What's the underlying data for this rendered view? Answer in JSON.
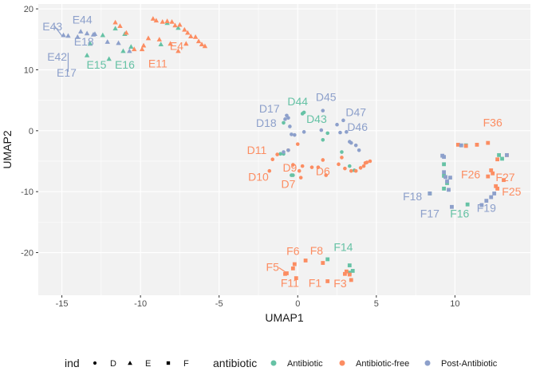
{
  "chart_data": {
    "type": "scatter",
    "xlabel": "UMAP1",
    "ylabel": "UMAP2",
    "xlim": [
      -16.5,
      14.8
    ],
    "ylim": [
      -27,
      20.8
    ],
    "xticks": [
      -15,
      -10,
      -5,
      0,
      5,
      10
    ],
    "yticks": [
      -20,
      -10,
      0,
      10,
      20
    ],
    "tick_labels_x": [
      "-15",
      "-10",
      "-5",
      "0",
      "5",
      "10"
    ],
    "tick_labels_y": [
      "-20",
      "-10",
      "0",
      "10",
      "20"
    ],
    "grid": true,
    "colors": {
      "Antibiotic": "#66c2a5",
      "Antibiotic-free": "#fc8d62",
      "Post-Antibiotic": "#8da0cb",
      "panel": "#f2f2f2",
      "grid": "#ffffff"
    },
    "legend": {
      "position": "bottom",
      "shape_title": "ind",
      "shapes": [
        {
          "label": "D",
          "shape": "circle"
        },
        {
          "label": "E",
          "shape": "triangle"
        },
        {
          "label": "F",
          "shape": "square"
        }
      ],
      "color_title": "antibiotic",
      "colors": [
        {
          "label": "Antibiotic",
          "color": "#66c2a5"
        },
        {
          "label": "Antibiotic-free",
          "color": "#fc8d62"
        },
        {
          "label": "Post-Antibiotic",
          "color": "#8da0cb"
        }
      ]
    },
    "series": [
      {
        "name": "Antibiotic",
        "shape": "D",
        "points": [
          [
            -0.9,
            1.3
          ],
          [
            0.3,
            2.8
          ],
          [
            0.4,
            3.0
          ],
          [
            1.9,
            -0.4
          ],
          [
            1.6,
            -1.5
          ],
          [
            2.8,
            -3.5
          ],
          [
            3.3,
            -5.8
          ],
          [
            3.6,
            -6.5
          ],
          [
            -1.1,
            -3.8
          ],
          [
            -0.9,
            -3.8
          ],
          [
            -0.4,
            -7.3
          ],
          [
            -0.3,
            -7.3
          ]
        ]
      },
      {
        "name": "Antibiotic-free",
        "shape": "D",
        "points": [
          [
            0.0,
            -2.2
          ],
          [
            -0.6,
            -3.2
          ],
          [
            -1.3,
            -3.9
          ],
          [
            -1.6,
            -4.7
          ],
          [
            -1.8,
            -6.6
          ],
          [
            -0.3,
            -5.6
          ],
          [
            0.3,
            -5.8
          ],
          [
            0.9,
            -6.0
          ],
          [
            1.6,
            -4.8
          ],
          [
            1.3,
            -6.0
          ],
          [
            1.8,
            -7.3
          ],
          [
            0.1,
            -6.6
          ],
          [
            0.2,
            -7.7
          ],
          [
            2.8,
            -4.4
          ],
          [
            2.6,
            -5.5
          ],
          [
            3.0,
            -6.2
          ],
          [
            3.4,
            -6.6
          ],
          [
            3.7,
            -6.6
          ],
          [
            4.0,
            -6.1
          ],
          [
            4.2,
            -5.8
          ],
          [
            4.3,
            -5.3
          ],
          [
            4.4,
            -5.2
          ],
          [
            4.6,
            -5.0
          ]
        ]
      },
      {
        "name": "Post-Antibiotic",
        "shape": "D",
        "points": [
          [
            -0.8,
            1.9
          ],
          [
            -0.6,
            2.1
          ],
          [
            -0.7,
            2.5
          ],
          [
            -0.5,
            0.7
          ],
          [
            -0.4,
            -0.6
          ],
          [
            -0.2,
            -0.7
          ],
          [
            -0.6,
            -3.2
          ],
          [
            -0.9,
            -3.5
          ],
          [
            0.4,
            -0.2
          ],
          [
            1.5,
            0.1
          ],
          [
            1.6,
            3.3
          ],
          [
            2.5,
            1.0
          ],
          [
            2.9,
            1.7
          ],
          [
            3.1,
            -0.2
          ],
          [
            3.3,
            -1.8
          ],
          [
            3.4,
            -2.0
          ],
          [
            3.7,
            -2.4
          ],
          [
            3.9,
            -3.2
          ],
          [
            2.7,
            -0.3
          ]
        ]
      },
      {
        "name": "Antibiotic",
        "shape": "E",
        "points": [
          [
            -13.2,
            14.3
          ],
          [
            -13.4,
            12.4
          ],
          [
            -12.0,
            11.8
          ],
          [
            -11.1,
            13.1
          ],
          [
            -12.4,
            15.7
          ],
          [
            -11.6,
            16.8
          ],
          [
            -11.0,
            15.9
          ],
          [
            -10.6,
            13.8
          ],
          [
            -8.3,
            17.7
          ],
          [
            -7.6,
            16.9
          ],
          [
            -8.7,
            14.2
          ]
        ]
      },
      {
        "name": "Antibiotic-free",
        "shape": "E",
        "points": [
          [
            -11.6,
            17.8
          ],
          [
            -11.3,
            17.2
          ],
          [
            -10.9,
            16.1
          ],
          [
            -10.4,
            13.4
          ],
          [
            -9.9,
            13.4
          ],
          [
            -9.2,
            18.4
          ],
          [
            -9.0,
            18.1
          ],
          [
            -8.6,
            17.9
          ],
          [
            -8.3,
            18.0
          ],
          [
            -8.0,
            17.9
          ],
          [
            -7.8,
            17.3
          ],
          [
            -7.5,
            17.4
          ],
          [
            -7.2,
            16.6
          ],
          [
            -7.0,
            16.1
          ],
          [
            -6.8,
            15.5
          ],
          [
            -6.5,
            15.4
          ],
          [
            -6.3,
            14.7
          ],
          [
            -6.1,
            14.2
          ],
          [
            -5.9,
            13.9
          ],
          [
            -7.1,
            14.3
          ],
          [
            -7.6,
            13.1
          ],
          [
            -8.1,
            14.3
          ],
          [
            -8.8,
            15.0
          ],
          [
            -9.5,
            15.2
          ],
          [
            -9.8,
            14.0
          ]
        ]
      },
      {
        "name": "Post-Antibiotic",
        "shape": "E",
        "points": [
          [
            -14.6,
            15.6
          ],
          [
            -14.9,
            15.7
          ],
          [
            -13.8,
            16.3
          ],
          [
            -13.4,
            16.0
          ],
          [
            -12.9,
            15.9
          ],
          [
            -12.1,
            14.6
          ],
          [
            -11.4,
            14.4
          ],
          [
            -10.7,
            13.1
          ],
          [
            -13.0,
            15.8
          ],
          [
            -14.0,
            15.4
          ]
        ]
      },
      {
        "name": "Antibiotic",
        "shape": "F",
        "points": [
          [
            1.9,
            -21.1
          ],
          [
            3.3,
            -22.1
          ],
          [
            3.3,
            -23.3
          ],
          [
            3.5,
            -23.0
          ],
          [
            13.0,
            -4.6
          ],
          [
            12.8,
            -4.0
          ],
          [
            9.3,
            -5.5
          ],
          [
            9.3,
            -7.4
          ],
          [
            9.5,
            -8.6
          ],
          [
            9.3,
            -9.5
          ],
          [
            8.4,
            -10.3
          ],
          [
            10.8,
            -12.1
          ],
          [
            10.7,
            -2.4
          ]
        ]
      },
      {
        "name": "Antibiotic-free",
        "shape": "F",
        "points": [
          [
            -0.7,
            -23.4
          ],
          [
            -0.8,
            -23.5
          ],
          [
            -0.3,
            -22.6
          ],
          [
            -0.1,
            -24.2
          ],
          [
            0.5,
            -21.3
          ],
          [
            1.6,
            -21.7
          ],
          [
            1.9,
            -24.7
          ],
          [
            3.0,
            -23.5
          ],
          [
            3.1,
            -23.1
          ],
          [
            3.3,
            -23.6
          ],
          [
            3.4,
            -24.5
          ],
          [
            -0.2,
            -21.9
          ],
          [
            10.2,
            -2.3
          ],
          [
            10.7,
            -2.5
          ],
          [
            11.4,
            -2.3
          ],
          [
            12.1,
            -2.0
          ],
          [
            12.7,
            -4.7
          ],
          [
            13.3,
            -4.0
          ],
          [
            12.3,
            -6.5
          ],
          [
            12.4,
            -7.0
          ],
          [
            12.1,
            -7.5
          ],
          [
            12.6,
            -9.1
          ],
          [
            13.1,
            -8.1
          ],
          [
            12.7,
            -9.5
          ]
        ]
      },
      {
        "name": "Post-Antibiotic",
        "shape": "F",
        "points": [
          [
            9.2,
            -4.1
          ],
          [
            9.3,
            -4.3
          ],
          [
            9.3,
            -6.8
          ],
          [
            9.4,
            -7.6
          ],
          [
            9.5,
            -8.3
          ],
          [
            9.6,
            -9.7
          ],
          [
            8.4,
            -10.3
          ],
          [
            9.8,
            -12.5
          ],
          [
            11.7,
            -12.2
          ],
          [
            12.0,
            -11.5
          ],
          [
            12.3,
            -10.9
          ],
          [
            12.5,
            -10.3
          ],
          [
            10.4,
            -2.4
          ],
          [
            13.3,
            -4.0
          ],
          [
            9.7,
            -7.7
          ]
        ]
      }
    ],
    "annotations": [
      {
        "text": "E43",
        "x": -15.6,
        "y": 16.5,
        "color": "#8da0cb",
        "line_to": [
          -15.0,
          15.6
        ]
      },
      {
        "text": "E44",
        "x": -13.7,
        "y": 17.6,
        "color": "#8da0cb"
      },
      {
        "text": "E18",
        "x": -13.6,
        "y": 14.0,
        "color": "#8da0cb"
      },
      {
        "text": "E42",
        "x": -15.3,
        "y": 11.5,
        "color": "#8da0cb"
      },
      {
        "text": "E17",
        "x": -14.7,
        "y": 8.9,
        "color": "#8da0cb",
        "line_to": [
          -14.6,
          12.8
        ]
      },
      {
        "text": "E15",
        "x": -12.8,
        "y": 10.2,
        "color": "#66c2a5"
      },
      {
        "text": "E16",
        "x": -11.0,
        "y": 10.2,
        "color": "#66c2a5"
      },
      {
        "text": "E4",
        "x": -7.7,
        "y": 13.3,
        "color": "#fc8d62"
      },
      {
        "text": "E11",
        "x": -8.9,
        "y": 10.4,
        "color": "#fc8d62"
      },
      {
        "text": "D44",
        "x": 0.0,
        "y": 4.2,
        "color": "#66c2a5"
      },
      {
        "text": "D45",
        "x": 1.8,
        "y": 4.9,
        "color": "#8da0cb"
      },
      {
        "text": "D17",
        "x": -1.8,
        "y": 3.0,
        "color": "#8da0cb"
      },
      {
        "text": "D47",
        "x": 3.7,
        "y": 2.4,
        "color": "#8da0cb"
      },
      {
        "text": "D43",
        "x": 1.2,
        "y": 1.3,
        "color": "#66c2a5"
      },
      {
        "text": "D18",
        "x": -2.0,
        "y": 0.6,
        "color": "#8da0cb"
      },
      {
        "text": "D46",
        "x": 3.8,
        "y": 0.0,
        "color": "#8da0cb"
      },
      {
        "text": "D11",
        "x": -2.6,
        "y": -3.8,
        "color": "#fc8d62"
      },
      {
        "text": "D9",
        "x": -0.5,
        "y": -6.7,
        "color": "#fc8d62"
      },
      {
        "text": "D6",
        "x": 1.6,
        "y": -7.3,
        "color": "#fc8d62"
      },
      {
        "text": "D10",
        "x": -2.5,
        "y": -8.2,
        "color": "#fc8d62"
      },
      {
        "text": "D7",
        "x": -0.6,
        "y": -9.4,
        "color": "#fc8d62"
      },
      {
        "text": "F36",
        "x": 12.4,
        "y": 0.7,
        "color": "#fc8d62"
      },
      {
        "text": "F26",
        "x": 11.0,
        "y": -7.8,
        "color": "#fc8d62"
      },
      {
        "text": "F27",
        "x": 13.2,
        "y": -8.3,
        "color": "#fc8d62"
      },
      {
        "text": "F25",
        "x": 13.6,
        "y": -10.6,
        "color": "#fc8d62"
      },
      {
        "text": "F18",
        "x": 7.3,
        "y": -11.4,
        "color": "#8da0cb"
      },
      {
        "text": "F17",
        "x": 8.4,
        "y": -14.2,
        "color": "#8da0cb"
      },
      {
        "text": "F16",
        "x": 10.3,
        "y": -14.2,
        "color": "#66c2a5"
      },
      {
        "text": "F19",
        "x": 12.0,
        "y": -13.3,
        "color": "#8da0cb"
      },
      {
        "text": "F14",
        "x": 2.9,
        "y": -19.7,
        "color": "#66c2a5"
      },
      {
        "text": "F6",
        "x": -0.3,
        "y": -20.4,
        "color": "#fc8d62"
      },
      {
        "text": "F8",
        "x": 1.2,
        "y": -20.3,
        "color": "#fc8d62"
      },
      {
        "text": "F5",
        "x": -1.6,
        "y": -23.0,
        "color": "#fc8d62",
        "line_to": [
          -0.6,
          -23.5
        ]
      },
      {
        "text": "F11",
        "x": -0.5,
        "y": -25.6,
        "color": "#fc8d62"
      },
      {
        "text": "F1",
        "x": 1.1,
        "y": -25.6,
        "color": "#fc8d62"
      },
      {
        "text": "F3",
        "x": 2.7,
        "y": -25.7,
        "color": "#fc8d62"
      }
    ]
  }
}
